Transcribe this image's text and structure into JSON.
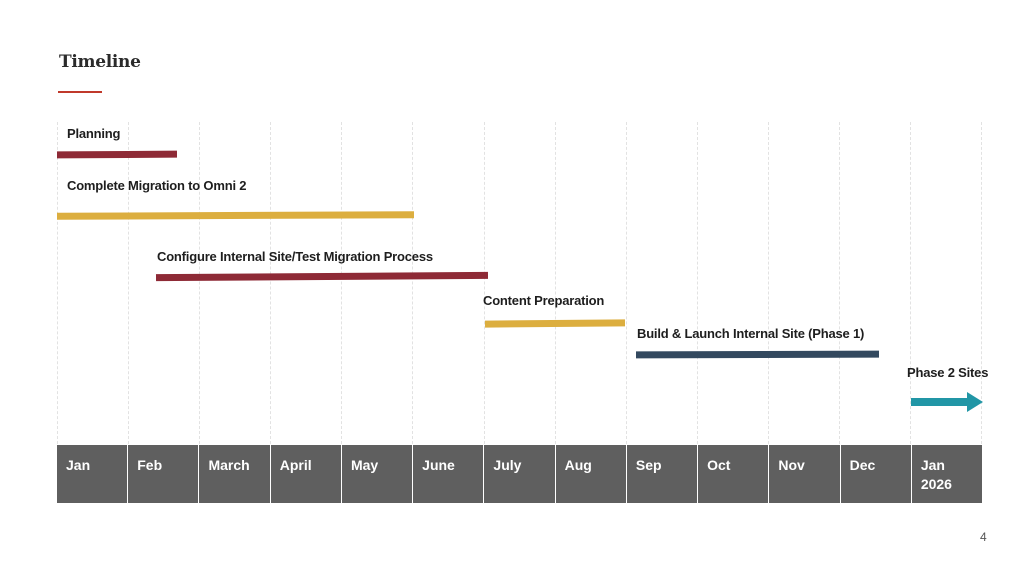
{
  "slide": {
    "title": "Timeline",
    "page_number": "4"
  },
  "colors": {
    "accent_red": "#c0392b",
    "maroon": "#8e2a36",
    "gold": "#dcae3f",
    "navy": "#33495f",
    "teal": "#2196a6",
    "month_band": "#5f5f5f"
  },
  "tasks": [
    {
      "label": "Planning",
      "start_month": 0,
      "end_month": 1.7,
      "color": "maroon"
    },
    {
      "label": "Complete Migration to Omni 2",
      "start_month": 0,
      "end_month": 5,
      "color": "gold"
    },
    {
      "label": "Configure Internal Site/Test Migration Process",
      "start_month": 1.4,
      "end_month": 6,
      "color": "maroon"
    },
    {
      "label": "Content Preparation",
      "start_month": 6,
      "end_month": 8,
      "color": "gold"
    },
    {
      "label": "Build & Launch Internal Site (Phase 1)",
      "start_month": 8.1,
      "end_month": 11.5,
      "color": "navy"
    },
    {
      "label": "Phase 2 Sites",
      "start_month": 12,
      "end_month": 13,
      "color": "teal",
      "style": "arrow"
    }
  ],
  "months": [
    "Jan",
    "Feb",
    "March",
    "April",
    "May",
    "June",
    "July",
    "Aug",
    "Sep",
    "Oct",
    "Nov",
    "Dec",
    "Jan\n2026"
  ]
}
